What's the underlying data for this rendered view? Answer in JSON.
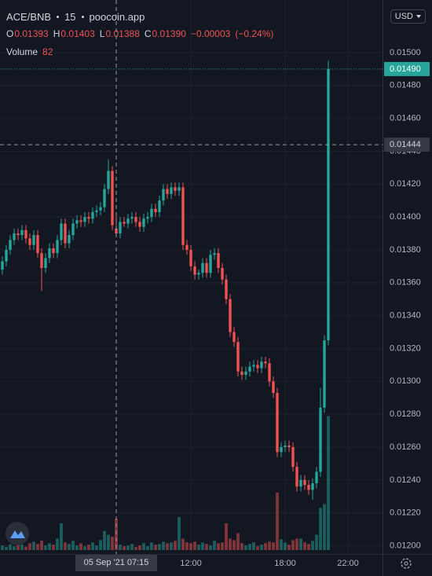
{
  "chart_data": {
    "type": "candlestick",
    "symbol": "ACE/BNB",
    "interval": "15",
    "source": "poocoin.app",
    "currency": "USD",
    "legend": {
      "open_label": "O",
      "open": "0.01393",
      "high_label": "H",
      "high": "0.01403",
      "low_label": "L",
      "low": "0.01388",
      "close_label": "C",
      "close": "0.01390",
      "change": "−0.00003",
      "change_pct": "(−0.24%)",
      "volume_label": "Volume",
      "volume_value": "82"
    },
    "up_color": "#26a69a",
    "down_color": "#ef5350",
    "grid": true,
    "xlim": [
      0,
      24.2
    ],
    "ylim": [
      0.01195,
      0.01532
    ],
    "volume_lim": [
      0,
      400
    ],
    "xticks": [
      {
        "value": 12,
        "label": "12:00"
      },
      {
        "value": 18,
        "label": "18:00"
      },
      {
        "value": 22,
        "label": "22:00"
      }
    ],
    "yticks": [
      {
        "value": 0.012,
        "label": "0.01200"
      },
      {
        "value": 0.0122,
        "label": "0.01220"
      },
      {
        "value": 0.0124,
        "label": "0.01240"
      },
      {
        "value": 0.0126,
        "label": "0.01260"
      },
      {
        "value": 0.0128,
        "label": "0.01280"
      },
      {
        "value": 0.013,
        "label": "0.01300"
      },
      {
        "value": 0.0132,
        "label": "0.01320"
      },
      {
        "value": 0.0134,
        "label": "0.01340"
      },
      {
        "value": 0.0136,
        "label": "0.01360"
      },
      {
        "value": 0.0138,
        "label": "0.01380"
      },
      {
        "value": 0.014,
        "label": "0.01400"
      },
      {
        "value": 0.0142,
        "label": "0.01420"
      },
      {
        "value": 0.0144,
        "label": "0.01440"
      },
      {
        "value": 0.0146,
        "label": "0.01460"
      },
      {
        "value": 0.0148,
        "label": "0.01480"
      },
      {
        "value": 0.015,
        "label": "0.01500"
      }
    ],
    "last_price": {
      "value": 0.0149,
      "label": "0.01490"
    },
    "crosshair": {
      "price": {
        "value": 0.01444,
        "label": "0.01444"
      },
      "time": {
        "value": 7.25,
        "label": "05 Sep '21 07:15"
      }
    },
    "x": [
      0,
      0.25,
      0.5,
      0.75,
      1,
      1.25,
      1.5,
      1.75,
      2,
      2.25,
      2.5,
      2.75,
      3,
      3.25,
      3.5,
      3.75,
      4,
      4.25,
      4.5,
      4.75,
      5,
      5.25,
      5.5,
      5.75,
      6,
      6.25,
      6.5,
      6.75,
      7,
      7.25,
      7.5,
      7.75,
      8,
      8.25,
      8.5,
      8.75,
      9,
      9.25,
      9.5,
      9.75,
      10,
      10.25,
      10.5,
      10.75,
      11,
      11.25,
      11.5,
      11.75,
      12,
      12.25,
      12.5,
      12.75,
      13,
      13.25,
      13.5,
      13.75,
      14,
      14.25,
      14.5,
      14.75,
      15,
      15.25,
      15.5,
      15.75,
      16,
      16.25,
      16.5,
      16.75,
      17,
      17.25,
      17.5,
      17.75,
      18,
      18.25,
      18.5,
      18.75,
      19,
      19.25,
      19.5,
      19.75,
      20,
      20.25,
      20.5,
      20.75
    ],
    "open": [
      0.01368,
      0.01373,
      0.0138,
      0.01386,
      0.0139,
      0.01389,
      0.01392,
      0.01387,
      0.01383,
      0.01389,
      0.01378,
      0.01369,
      0.01375,
      0.01381,
      0.01378,
      0.01386,
      0.01396,
      0.01384,
      0.01389,
      0.01396,
      0.01398,
      0.01397,
      0.014,
      0.01399,
      0.01403,
      0.01404,
      0.01406,
      0.01417,
      0.01428,
      0.01393,
      0.0139,
      0.01397,
      0.01396,
      0.01399,
      0.014,
      0.01397,
      0.01394,
      0.01399,
      0.014,
      0.01405,
      0.01403,
      0.0141,
      0.01417,
      0.01414,
      0.01418,
      0.01416,
      0.01418,
      0.01383,
      0.0138,
      0.0137,
      0.01365,
      0.01366,
      0.01372,
      0.01366,
      0.01377,
      0.01378,
      0.01369,
      0.01362,
      0.0135,
      0.0133,
      0.01324,
      0.01306,
      0.01304,
      0.01306,
      0.01309,
      0.0131,
      0.01308,
      0.01312,
      0.01311,
      0.013,
      0.01293,
      0.01257,
      0.0126,
      0.01261,
      0.0126,
      0.01248,
      0.01236,
      0.0124,
      0.01237,
      0.01234,
      0.01238,
      0.01245,
      0.01284,
      0.01325
    ],
    "high": [
      0.01376,
      0.01383,
      0.01389,
      0.01393,
      0.01393,
      0.01395,
      0.01395,
      0.0139,
      0.01392,
      0.01392,
      0.01381,
      0.01378,
      0.01384,
      0.01384,
      0.01389,
      0.01399,
      0.01399,
      0.01392,
      0.01399,
      0.01401,
      0.01401,
      0.01403,
      0.01403,
      0.01406,
      0.01407,
      0.01409,
      0.0142,
      0.01435,
      0.01431,
      0.01403,
      0.014,
      0.014,
      0.01402,
      0.01403,
      0.01403,
      0.014,
      0.01402,
      0.01403,
      0.01408,
      0.01408,
      0.01413,
      0.0142,
      0.0142,
      0.01421,
      0.01421,
      0.01421,
      0.01421,
      0.01386,
      0.01383,
      0.01373,
      0.01368,
      0.01375,
      0.01375,
      0.0138,
      0.01381,
      0.01381,
      0.01372,
      0.01365,
      0.01353,
      0.01333,
      0.01327,
      0.01309,
      0.01309,
      0.01312,
      0.01313,
      0.01313,
      0.01315,
      0.01315,
      0.01314,
      0.01303,
      0.01296,
      0.01263,
      0.01264,
      0.01264,
      0.01263,
      0.01251,
      0.01243,
      0.01243,
      0.0124,
      0.01241,
      0.01248,
      0.01296,
      0.01328,
      0.01495
    ],
    "low": [
      0.01365,
      0.0137,
      0.01377,
      0.01383,
      0.01386,
      0.01386,
      0.01384,
      0.0138,
      0.0138,
      0.01375,
      0.01355,
      0.01366,
      0.01372,
      0.01375,
      0.01375,
      0.01383,
      0.01381,
      0.01381,
      0.01386,
      0.01393,
      0.01394,
      0.01394,
      0.01396,
      0.01396,
      0.014,
      0.01401,
      0.01403,
      0.01414,
      0.01392,
      0.01388,
      0.01387,
      0.01394,
      0.01393,
      0.01396,
      0.01394,
      0.01391,
      0.01391,
      0.01396,
      0.01397,
      0.014,
      0.014,
      0.01407,
      0.01411,
      0.01411,
      0.01413,
      0.01413,
      0.0138,
      0.01377,
      0.01367,
      0.01362,
      0.01362,
      0.01363,
      0.01363,
      0.01363,
      0.01374,
      0.01366,
      0.01359,
      0.01347,
      0.01327,
      0.01321,
      0.01303,
      0.01301,
      0.01301,
      0.01303,
      0.01306,
      0.01305,
      0.01305,
      0.01308,
      0.01297,
      0.0129,
      0.01254,
      0.01254,
      0.01257,
      0.01257,
      0.01245,
      0.01233,
      0.01233,
      0.01234,
      0.01231,
      0.01228,
      0.01235,
      0.01242,
      0.01281,
      0.01322
    ],
    "close": [
      0.01373,
      0.0138,
      0.01386,
      0.0139,
      0.01389,
      0.01392,
      0.01387,
      0.01383,
      0.01389,
      0.01378,
      0.01369,
      0.01375,
      0.01381,
      0.01378,
      0.01386,
      0.01396,
      0.01384,
      0.01389,
      0.01396,
      0.01398,
      0.01397,
      0.014,
      0.01399,
      0.01403,
      0.01404,
      0.01406,
      0.01417,
      0.01428,
      0.01395,
      0.0139,
      0.01397,
      0.01396,
      0.01399,
      0.014,
      0.01397,
      0.01394,
      0.01399,
      0.014,
      0.01405,
      0.01403,
      0.0141,
      0.01417,
      0.01414,
      0.01418,
      0.01416,
      0.01418,
      0.01383,
      0.0138,
      0.0137,
      0.01365,
      0.01366,
      0.01372,
      0.01366,
      0.01377,
      0.01378,
      0.01369,
      0.01362,
      0.0135,
      0.0133,
      0.01324,
      0.01306,
      0.01304,
      0.01306,
      0.01309,
      0.0131,
      0.01308,
      0.01312,
      0.01311,
      0.013,
      0.01293,
      0.01257,
      0.0126,
      0.01261,
      0.0126,
      0.01248,
      0.01236,
      0.0124,
      0.01237,
      0.01234,
      0.01238,
      0.01245,
      0.01284,
      0.01325,
      0.0149
    ],
    "volume": [
      12,
      8,
      15,
      10,
      20,
      14,
      9,
      18,
      22,
      16,
      25,
      12,
      18,
      14,
      30,
      70,
      20,
      16,
      24,
      12,
      18,
      10,
      14,
      20,
      12,
      26,
      50,
      40,
      35,
      82,
      14,
      10,
      12,
      16,
      8,
      12,
      18,
      10,
      20,
      14,
      16,
      22,
      18,
      20,
      24,
      86,
      30,
      20,
      18,
      22,
      14,
      20,
      16,
      12,
      24,
      18,
      20,
      70,
      30,
      26,
      44,
      18,
      12,
      16,
      20,
      10,
      14,
      18,
      22,
      20,
      150,
      28,
      20,
      14,
      26,
      30,
      30,
      20,
      16,
      24,
      40,
      110,
      120,
      350
    ]
  }
}
